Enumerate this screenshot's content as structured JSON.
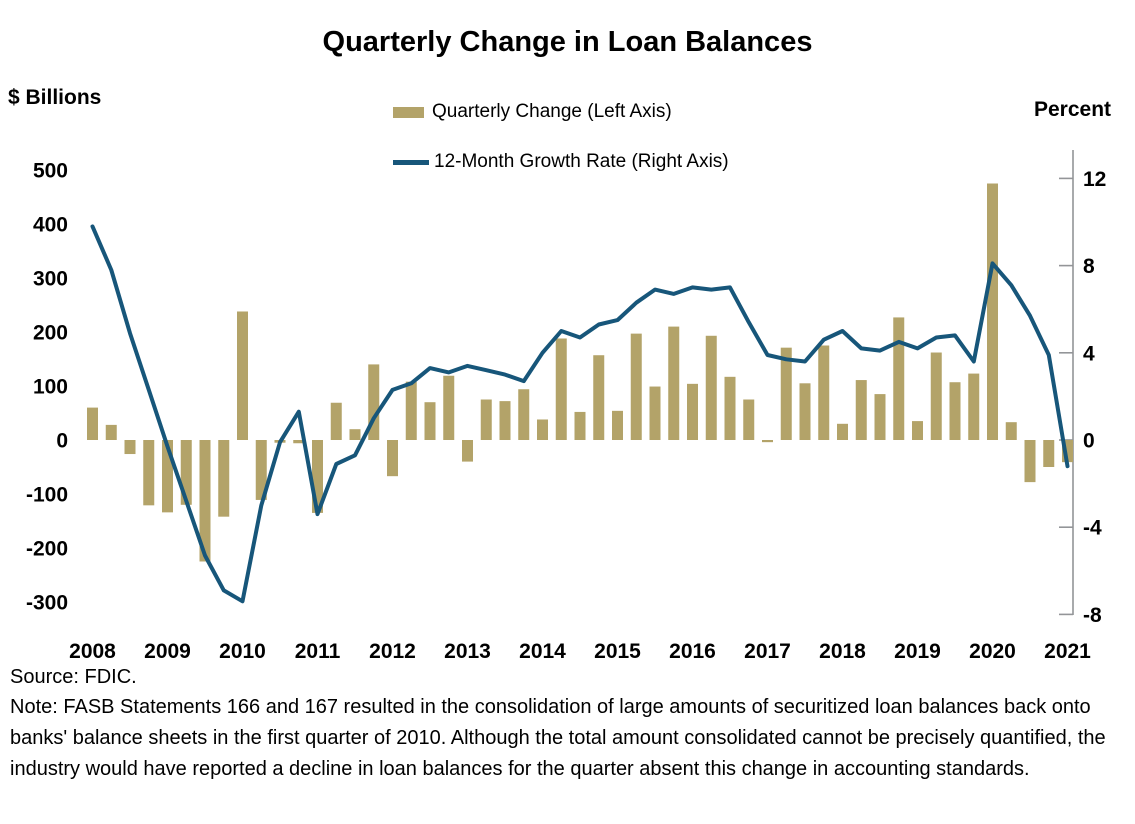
{
  "header": {
    "title": "Quarterly Change in Loan Balances"
  },
  "axis_labels": {
    "left_units": "$ Billions",
    "right_units": "Percent"
  },
  "legend": {
    "items": [
      {
        "label": "Quarterly Change (Left Axis)",
        "color": "#B3A369"
      },
      {
        "label": "12-Month Growth Rate (Right Axis)",
        "color": "#17567A"
      }
    ]
  },
  "footer": {
    "source": "Source: FDIC.",
    "note": "Note: FASB Statements 166 and 167 resulted in the consolidation of large amounts of securitized loan balances back onto banks' balance sheets in the first quarter of 2010. Although the total amount consolidated cannot be precisely quantified, the industry would have reported a decline in loan balances for the quarter absent this change in accounting standards."
  },
  "colors": {
    "bar": "#B3A369",
    "line": "#17567A",
    "axis": "#939598",
    "text": "#000000"
  },
  "chart_data": {
    "type": "bar",
    "title": "Quarterly Change in Loan Balances",
    "grid": false,
    "legend_position": "top-center",
    "x_year_labels": [
      "2008",
      "2009",
      "2010",
      "2011",
      "2012",
      "2013",
      "2014",
      "2015",
      "2016",
      "2017",
      "2018",
      "2019",
      "2020",
      "2021"
    ],
    "categories": [
      "2008 Q1",
      "2008 Q2",
      "2008 Q3",
      "2008 Q4",
      "2009 Q1",
      "2009 Q2",
      "2009 Q3",
      "2009 Q4",
      "2010 Q1",
      "2010 Q2",
      "2010 Q3",
      "2010 Q4",
      "2011 Q1",
      "2011 Q2",
      "2011 Q3",
      "2011 Q4",
      "2012 Q1",
      "2012 Q2",
      "2012 Q3",
      "2012 Q4",
      "2013 Q1",
      "2013 Q2",
      "2013 Q3",
      "2013 Q4",
      "2014 Q1",
      "2014 Q2",
      "2014 Q3",
      "2014 Q4",
      "2015 Q1",
      "2015 Q2",
      "2015 Q3",
      "2015 Q4",
      "2016 Q1",
      "2016 Q2",
      "2016 Q3",
      "2016 Q4",
      "2017 Q1",
      "2017 Q2",
      "2017 Q3",
      "2017 Q4",
      "2018 Q1",
      "2018 Q2",
      "2018 Q3",
      "2018 Q4",
      "2019 Q1",
      "2019 Q2",
      "2019 Q3",
      "2019 Q4",
      "2020 Q1",
      "2020 Q2",
      "2020 Q3",
      "2020 Q4",
      "2021 Q1"
    ],
    "series": [
      {
        "name": "Quarterly Change (Left Axis)",
        "type": "bar",
        "axis": "left",
        "units": "$ Billions",
        "color": "#B3A369",
        "values": [
          60,
          28,
          -26,
          -121,
          -134,
          -120,
          -225,
          -142,
          238,
          -111,
          -5,
          -6,
          -135,
          69,
          20,
          140,
          -67,
          108,
          70,
          119,
          -40,
          75,
          72,
          94,
          38,
          188,
          52,
          157,
          54,
          197,
          99,
          210,
          104,
          193,
          117,
          75,
          -4,
          171,
          105,
          175,
          30,
          111,
          85,
          227,
          35,
          162,
          107,
          123,
          475,
          33,
          -78,
          -50,
          -41
        ]
      },
      {
        "name": "12-Month Growth Rate (Right Axis)",
        "type": "line",
        "axis": "right",
        "units": "Percent",
        "color": "#17567A",
        "values": [
          9.8,
          7.8,
          4.9,
          2.3,
          -0.3,
          -2.8,
          -5.3,
          -6.9,
          -7.4,
          -3.0,
          -0.1,
          1.3,
          -3.4,
          -1.1,
          -0.7,
          1.0,
          2.3,
          2.6,
          3.3,
          3.1,
          3.4,
          3.2,
          3.0,
          2.7,
          4.0,
          5.0,
          4.7,
          5.3,
          5.5,
          6.3,
          6.9,
          6.7,
          7.0,
          6.9,
          7.0,
          5.4,
          3.9,
          3.7,
          3.6,
          4.6,
          5.0,
          4.2,
          4.1,
          4.5,
          4.2,
          4.7,
          4.8,
          3.6,
          8.1,
          7.1,
          5.7,
          3.9,
          -1.2
        ]
      }
    ],
    "left_axis": {
      "label": "$ Billions",
      "ticks": [
        500,
        400,
        300,
        200,
        100,
        0,
        -100,
        -200,
        -300
      ],
      "range": [
        -300,
        500
      ]
    },
    "right_axis": {
      "label": "Percent",
      "ticks": [
        12,
        8,
        4,
        0,
        -4,
        -8
      ],
      "range": [
        -8,
        12
      ]
    }
  }
}
